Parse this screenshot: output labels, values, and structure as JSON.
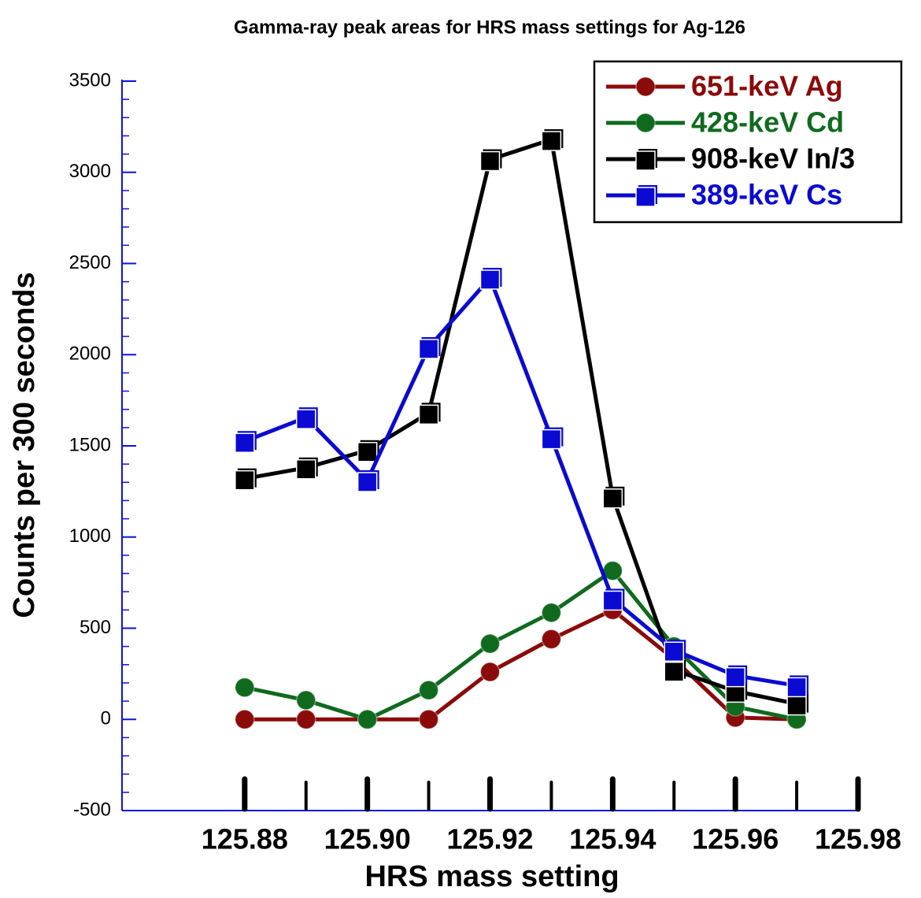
{
  "chart_data": {
    "type": "line",
    "title": "Gamma-ray peak areas for HRS mass settings for Ag-126",
    "x_label": "HRS mass setting",
    "y_label": "Counts per 300 seconds",
    "x": [
      125.88,
      125.89,
      125.9,
      125.91,
      125.92,
      125.93,
      125.94,
      125.95,
      125.96,
      125.97
    ],
    "series": [
      {
        "name": "651-keV Ag",
        "color": "#8b0a0a",
        "marker": "circle",
        "values": [
          0,
          0,
          0,
          0,
          260,
          440,
          600,
          330,
          10,
          0
        ]
      },
      {
        "name": "428-keV Cd",
        "color": "#0f6a1e",
        "marker": "circle",
        "values": [
          175,
          105,
          0,
          160,
          415,
          585,
          815,
          400,
          70,
          0
        ]
      },
      {
        "name": "908-keV In/3",
        "color": "#000000",
        "marker": "square",
        "values": [
          1320,
          1380,
          1475,
          1680,
          3070,
          3180,
          1220,
          270,
          155,
          85
        ]
      },
      {
        "name": "389-keV Cs",
        "color": "#0a0ad2",
        "marker": "square",
        "values": [
          1525,
          1655,
          1310,
          2040,
          2420,
          1545,
          660,
          380,
          240,
          185
        ]
      }
    ],
    "xlim": [
      125.86,
      125.98
    ],
    "xticks": [
      125.88,
      {
        "value": 125.9,
        "label": "125.90"
      },
      125.92,
      125.94,
      125.96,
      125.98
    ],
    "ylim": [
      -500,
      3500
    ],
    "yticks": [
      -500,
      0,
      500,
      1000,
      1500,
      2000,
      2500,
      3000,
      3500
    ],
    "legend": "upper right"
  }
}
